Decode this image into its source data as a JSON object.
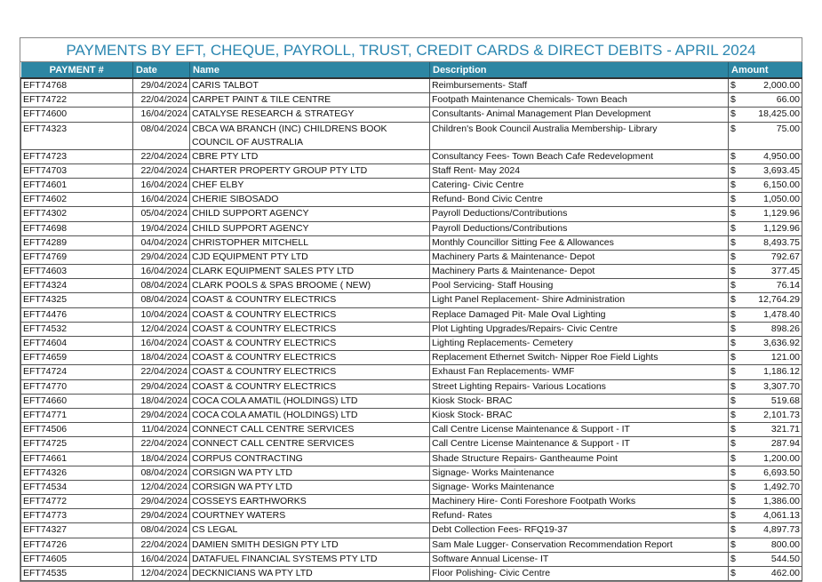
{
  "title": "PAYMENTS BY EFT, CHEQUE, PAYROLL, TRUST, CREDIT CARDS & DIRECT DEBITS - APRIL 2024",
  "headers": {
    "payment": "PAYMENT #",
    "date": "Date",
    "name": "Name",
    "description": "Description",
    "amount": "Amount"
  },
  "header_color": "#2d86a3",
  "currency": "$",
  "rows": [
    [
      "EFT74768",
      "29/04/2024",
      "CARIS TALBOT",
      "Reimbursements- Staff",
      "2,000.00"
    ],
    [
      "EFT74722",
      "22/04/2024",
      "CARPET PAINT & TILE CENTRE",
      "Footpath Maintenance Chemicals- Town Beach",
      "66.00"
    ],
    [
      "EFT74600",
      "16/04/2024",
      "CATALYSE RESEARCH & STRATEGY",
      "Consultants-  Animal Management Plan Development",
      "18,425.00"
    ],
    [
      "EFT74323",
      "08/04/2024",
      "CBCA WA BRANCH (INC)   CHILDRENS BOOK COUNCIL OF AUSTRALIA",
      "Children's Book Council Australia Membership- Library",
      "75.00"
    ],
    [
      "EFT74723",
      "22/04/2024",
      "CBRE PTY LTD",
      "Consultancy Fees- Town Beach Cafe Redevelopment",
      "4,950.00"
    ],
    [
      "EFT74703",
      "22/04/2024",
      "CHARTER PROPERTY GROUP PTY LTD",
      "Staff Rent- May 2024",
      "3,693.45"
    ],
    [
      "EFT74601",
      "16/04/2024",
      "CHEF ELBY",
      "Catering- Civic Centre",
      "6,150.00"
    ],
    [
      "EFT74602",
      "16/04/2024",
      "CHERIE SIBOSADO",
      "Refund- Bond Civic Centre",
      "1,050.00"
    ],
    [
      "EFT74302",
      "05/04/2024",
      "CHILD SUPPORT AGENCY",
      "Payroll Deductions/Contributions",
      "1,129.96"
    ],
    [
      "EFT74698",
      "19/04/2024",
      "CHILD SUPPORT AGENCY",
      "Payroll Deductions/Contributions",
      "1,129.96"
    ],
    [
      "EFT74289",
      "04/04/2024",
      "CHRISTOPHER MITCHELL",
      "Monthly Councillor Sitting Fee & Allowances",
      "8,493.75"
    ],
    [
      "EFT74769",
      "29/04/2024",
      "CJD EQUIPMENT PTY LTD",
      "Machinery Parts & Maintenance- Depot",
      "792.67"
    ],
    [
      "EFT74603",
      "16/04/2024",
      "CLARK EQUIPMENT SALES PTY LTD",
      "Machinery Parts & Maintenance- Depot",
      "377.45"
    ],
    [
      "EFT74324",
      "08/04/2024",
      "CLARK POOLS & SPAS BROOME ( NEW)",
      "Pool Servicing- Staff Housing",
      "76.14"
    ],
    [
      "EFT74325",
      "08/04/2024",
      "COAST & COUNTRY ELECTRICS",
      "Light Panel Replacement- Shire Administration",
      "12,764.29"
    ],
    [
      "EFT74476",
      "10/04/2024",
      "COAST & COUNTRY ELECTRICS",
      "Replace Damaged Pit- Male Oval Lighting",
      "1,478.40"
    ],
    [
      "EFT74532",
      "12/04/2024",
      "COAST & COUNTRY ELECTRICS",
      "Plot Lighting Upgrades/Repairs- Civic Centre",
      "898.26"
    ],
    [
      "EFT74604",
      "16/04/2024",
      "COAST & COUNTRY ELECTRICS",
      "Lighting Replacements- Cemetery",
      "3,636.92"
    ],
    [
      "EFT74659",
      "18/04/2024",
      "COAST & COUNTRY ELECTRICS",
      "Replacement Ethernet Switch- Nipper Roe Field Lights",
      "121.00"
    ],
    [
      "EFT74724",
      "22/04/2024",
      "COAST & COUNTRY ELECTRICS",
      "Exhaust Fan Replacements- WMF",
      "1,186.12"
    ],
    [
      "EFT74770",
      "29/04/2024",
      "COAST & COUNTRY ELECTRICS",
      "Street Lighting Repairs- Various Locations",
      "3,307.70"
    ],
    [
      "EFT74660",
      "18/04/2024",
      "COCA COLA AMATIL (HOLDINGS) LTD",
      "Kiosk Stock- BRAC",
      "519.68"
    ],
    [
      "EFT74771",
      "29/04/2024",
      "COCA COLA AMATIL (HOLDINGS) LTD",
      "Kiosk Stock- BRAC",
      "2,101.73"
    ],
    [
      "EFT74506",
      "11/04/2024",
      "CONNECT CALL CENTRE SERVICES",
      "Call Centre License Maintenance & Support - IT",
      "321.71"
    ],
    [
      "EFT74725",
      "22/04/2024",
      "CONNECT CALL CENTRE SERVICES",
      "Call Centre License Maintenance & Support - IT",
      "287.94"
    ],
    [
      "EFT74661",
      "18/04/2024",
      "CORPUS CONTRACTING",
      "Shade Structure Repairs- Gantheaume Point",
      "1,200.00"
    ],
    [
      "EFT74326",
      "08/04/2024",
      "CORSIGN WA PTY LTD",
      "Signage- Works Maintenance",
      "6,693.50"
    ],
    [
      "EFT74534",
      "12/04/2024",
      "CORSIGN WA PTY LTD",
      "Signage- Works Maintenance",
      "1,492.70"
    ],
    [
      "EFT74772",
      "29/04/2024",
      "COSSEYS EARTHWORKS",
      "Machinery Hire- Conti Foreshore Footpath Works",
      "1,386.00"
    ],
    [
      "EFT74773",
      "29/04/2024",
      "COURTNEY WATERS",
      "Refund- Rates",
      "4,061.13"
    ],
    [
      "EFT74327",
      "08/04/2024",
      "CS LEGAL",
      "Debt Collection Fees- RFQ19-37",
      "4,897.73"
    ],
    [
      "EFT74726",
      "22/04/2024",
      "DAMIEN SMITH DESIGN PTY LTD",
      "Sam Male Lugger- Conservation Recommendation Report",
      "800.00"
    ],
    [
      "EFT74605",
      "16/04/2024",
      "DATAFUEL FINANCIAL SYSTEMS PTY LTD",
      "Software Annual License- IT",
      "544.50"
    ],
    [
      "EFT74535",
      "12/04/2024",
      "DECKNICIANS WA PTY LTD",
      "Floor Polishing- Civic Centre",
      "462.00"
    ]
  ]
}
